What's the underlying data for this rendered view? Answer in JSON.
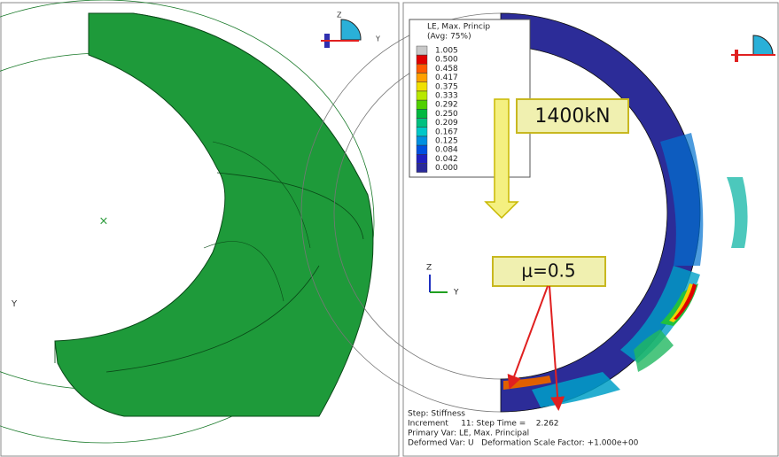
{
  "left_view": {
    "axis_label": "Y",
    "triad": {
      "z": "Z",
      "y": "Y"
    }
  },
  "right_view": {
    "legend": {
      "title": "LE, Max. Princip",
      "subtitle": "(Avg: 75%)",
      "levels": [
        {
          "label": "1.005",
          "color": "#c8c8c8"
        },
        {
          "label": "0.500",
          "color": "#e00000"
        },
        {
          "label": "0.458",
          "color": "#ff5a00"
        },
        {
          "label": "0.417",
          "color": "#ffa000"
        },
        {
          "label": "0.375",
          "color": "#f0e000"
        },
        {
          "label": "0.333",
          "color": "#b8e800"
        },
        {
          "label": "0.292",
          "color": "#50d000"
        },
        {
          "label": "0.250",
          "color": "#00b840"
        },
        {
          "label": "0.209",
          "color": "#00c080"
        },
        {
          "label": "0.167",
          "color": "#00c8c8"
        },
        {
          "label": "0.125",
          "color": "#0090e0"
        },
        {
          "label": "0.084",
          "color": "#0050e0"
        },
        {
          "label": "0.042",
          "color": "#2020c0"
        },
        {
          "label": "0.000",
          "color": "#2a2a9a"
        }
      ]
    },
    "load_label": "1400kN",
    "friction_label": "μ=0.5",
    "triad": {
      "z": "Z",
      "y": "Y"
    },
    "footer": [
      "Step: Stiffness",
      "Increment     11: Step Time =    2.262",
      "Primary Var: LE, Max. Principal",
      "Deformed Var: U   Deformation Scale Factor: +1.000e+00"
    ]
  }
}
